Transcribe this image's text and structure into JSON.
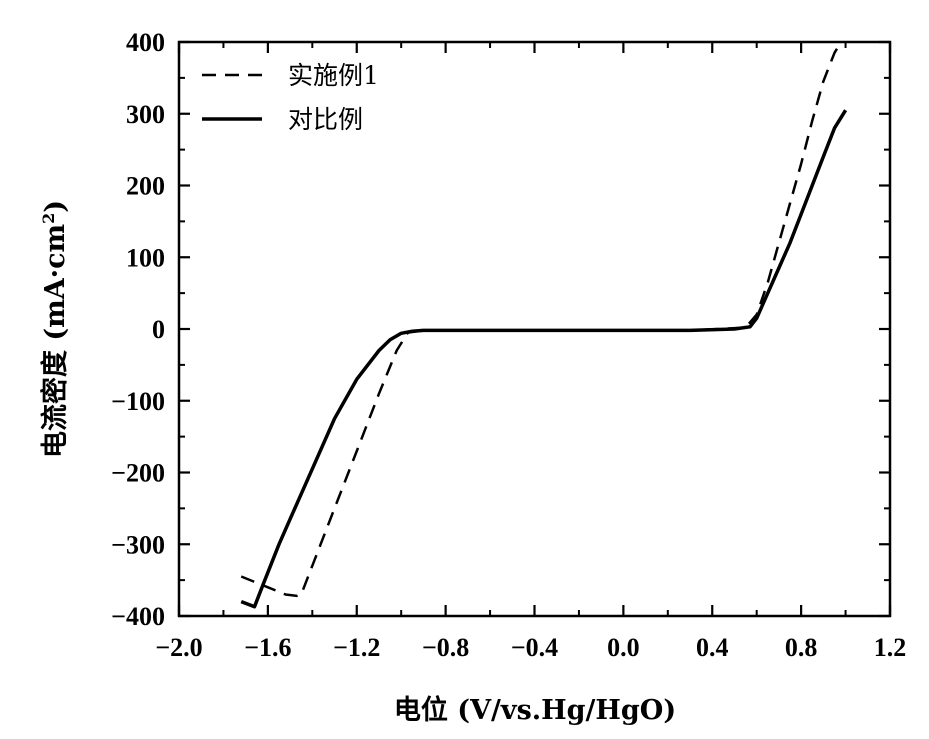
{
  "chart_data": {
    "type": "line",
    "title": "",
    "xlabel": "电位 (V/vs.Hg/HgO)",
    "ylabel_main": "电流密度 (mA·cm",
    "ylabel_sup": "2",
    "ylabel_tail": ")",
    "xlim": [
      -2.0,
      1.2
    ],
    "ylim": [
      -400,
      400
    ],
    "xticks": [
      -2.0,
      -1.6,
      -1.2,
      -0.8,
      -0.4,
      0.0,
      0.4,
      0.8,
      1.2
    ],
    "xtick_labels": [
      "−2.0",
      "−1.6",
      "−1.2",
      "−0.8",
      "−0.4",
      "0.0",
      "0.4",
      "0.8",
      "1.2"
    ],
    "yticks": [
      -400,
      -300,
      -200,
      -100,
      0,
      100,
      200,
      300,
      400
    ],
    "ytick_labels": [
      "−400",
      "−300",
      "−200",
      "−100",
      "0",
      "100",
      "200",
      "300",
      "400"
    ],
    "grid": false,
    "legend_position": "top-left",
    "series": [
      {
        "name": "实施例1",
        "style": "dashed",
        "color": "#000000",
        "x": [
          -1.72,
          -1.6,
          -1.52,
          -1.47,
          -1.45,
          -1.4,
          -1.3,
          -1.2,
          -1.1,
          -1.02,
          -0.97,
          -0.9,
          -0.6,
          -0.3,
          0.0,
          0.3,
          0.55,
          0.6,
          0.65,
          0.7,
          0.75,
          0.8,
          0.85,
          0.9,
          0.95,
          0.98
        ],
        "y": [
          -345,
          -360,
          -370,
          -372,
          -370,
          -330,
          -250,
          -170,
          -90,
          -30,
          -5,
          -2,
          -2,
          -2,
          -2,
          -2,
          2,
          20,
          65,
          120,
          175,
          230,
          290,
          345,
          385,
          400
        ]
      },
      {
        "name": "对比例",
        "style": "solid",
        "color": "#000000",
        "x": [
          -1.72,
          -1.66,
          -1.62,
          -1.55,
          -1.5,
          -1.4,
          -1.3,
          -1.2,
          -1.1,
          -1.05,
          -1.0,
          -0.95,
          -0.9,
          -0.6,
          -0.3,
          0.0,
          0.3,
          0.5,
          0.57,
          0.6,
          0.65,
          0.7,
          0.75,
          0.8,
          0.85,
          0.9,
          0.95,
          1.0
        ],
        "y": [
          -380,
          -387,
          -355,
          -300,
          -265,
          -195,
          -125,
          -70,
          -30,
          -15,
          -6,
          -3,
          -2,
          -2,
          -2,
          -2,
          -2,
          0,
          3,
          15,
          50,
          85,
          120,
          160,
          200,
          240,
          280,
          305
        ]
      }
    ]
  }
}
